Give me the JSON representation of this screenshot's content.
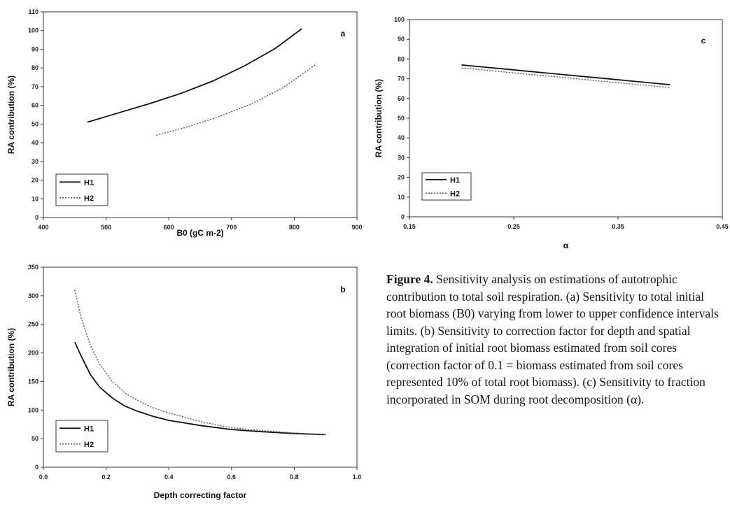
{
  "caption": {
    "label": "Figure 4.",
    "text": "Sensitivity analysis on estimations of autotrophic contribution to total soil respiration. (a) Sensitivity to total initial root biomass (B0) varying from lower to upper confidence intervals limits. (b) Sensitivity to correction factor for depth and spatial integration of initial root biomass estimated from soil cores (correction factor of 0.1 = biomass estimated from soil cores represented 10% of total root biomass). (c) Sensitivity to fraction incorporated in SOM during root decomposition (α)."
  },
  "chart_data": [
    {
      "panel": "a",
      "type": "line",
      "xlabel": "B0 (gC m-2)",
      "ylabel": "RA contribution (%)",
      "xlim": [
        400,
        900
      ],
      "ylim": [
        0,
        110
      ],
      "xticks": [
        400,
        500,
        600,
        700,
        800,
        900
      ],
      "yticks": [
        0,
        10,
        20,
        30,
        40,
        50,
        60,
        70,
        80,
        90,
        100,
        110
      ],
      "legend_position": "bottom-left",
      "series": [
        {
          "name": "H1",
          "style": "solid",
          "x": [
            470,
            520,
            570,
            620,
            670,
            720,
            770,
            812
          ],
          "y": [
            51,
            56,
            61,
            66.5,
            73,
            81,
            90.5,
            101
          ]
        },
        {
          "name": "H2",
          "style": "dotted",
          "x": [
            580,
            630,
            680,
            730,
            780,
            835
          ],
          "y": [
            44,
            48.5,
            54,
            60.5,
            69,
            82
          ]
        }
      ]
    },
    {
      "panel": "b",
      "type": "line",
      "xlabel": "Depth correcting factor",
      "ylabel": "RA contribution (%)",
      "xlim": [
        0.0,
        1.0
      ],
      "ylim": [
        0,
        350
      ],
      "xticks": [
        0.0,
        0.2,
        0.4,
        0.6,
        0.8,
        1.0
      ],
      "yticks": [
        0,
        50,
        100,
        150,
        200,
        250,
        300,
        350
      ],
      "legend_position": "bottom-left",
      "series": [
        {
          "name": "H1",
          "style": "solid",
          "x": [
            0.1,
            0.12,
            0.15,
            0.18,
            0.22,
            0.26,
            0.3,
            0.35,
            0.4,
            0.5,
            0.6,
            0.7,
            0.8,
            0.9
          ],
          "y": [
            219,
            195,
            162,
            140,
            121,
            107,
            98,
            89,
            82,
            73,
            66,
            62,
            59,
            57
          ]
        },
        {
          "name": "H2",
          "style": "dotted",
          "x": [
            0.1,
            0.12,
            0.15,
            0.18,
            0.22,
            0.26,
            0.3,
            0.35,
            0.4,
            0.5,
            0.6,
            0.7,
            0.8,
            0.9
          ],
          "y": [
            310,
            262,
            213,
            180,
            150,
            130,
            117,
            104,
            95,
            80,
            69,
            64,
            60,
            57
          ]
        }
      ]
    },
    {
      "panel": "c",
      "type": "line",
      "xlabel": "α",
      "ylabel": "RA contribution (%)",
      "xlim": [
        0.15,
        0.45
      ],
      "ylim": [
        0,
        100
      ],
      "xticks": [
        0.15,
        0.25,
        0.35,
        0.45
      ],
      "yticks": [
        0,
        10,
        20,
        30,
        40,
        50,
        60,
        70,
        80,
        90,
        100
      ],
      "legend_position": "bottom-left",
      "series": [
        {
          "name": "H1",
          "style": "solid",
          "x": [
            0.2,
            0.3,
            0.4
          ],
          "y": [
            77,
            72,
            67
          ]
        },
        {
          "name": "H2",
          "style": "dotted",
          "x": [
            0.2,
            0.3,
            0.4
          ],
          "y": [
            75.5,
            70.5,
            65.5
          ]
        }
      ]
    }
  ]
}
